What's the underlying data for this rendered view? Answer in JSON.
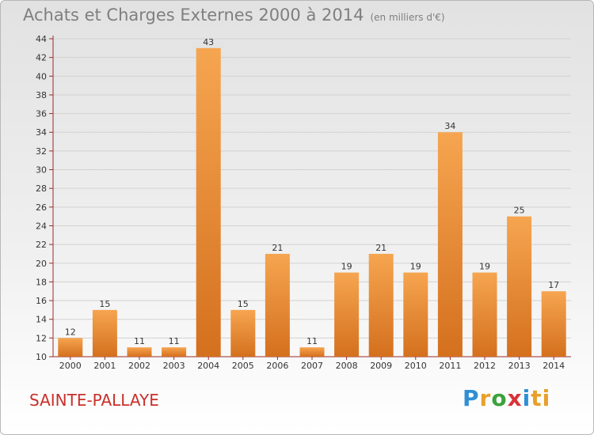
{
  "header": {
    "title": "Achats et Charges Externes 2000 à 2014",
    "unit": "(en milliers d'€)"
  },
  "footer": {
    "commune": "SAINTE-PALLAYE",
    "brand": "Proxiti",
    "brand_letters": [
      "P",
      "r",
      "o",
      "x",
      "i",
      "t",
      "i"
    ]
  },
  "colors": {
    "bar_light": "#f6a550",
    "bar_dark": "#d4701e",
    "axis": "#9a2a2a",
    "commune_text": "#c9302a"
  },
  "chart_data": {
    "type": "bar",
    "title": "Achats et Charges Externes 2000 à 2014",
    "subtitle": "(en milliers d'€)",
    "xlabel": "",
    "ylabel": "",
    "categories": [
      "2000",
      "2001",
      "2002",
      "2003",
      "2004",
      "2005",
      "2006",
      "2007",
      "2008",
      "2009",
      "2010",
      "2011",
      "2012",
      "2013",
      "2014"
    ],
    "values": [
      12,
      15,
      11,
      11,
      43,
      15,
      21,
      11,
      19,
      21,
      19,
      34,
      19,
      25,
      17
    ],
    "ylim": [
      10,
      44
    ],
    "yticks": [
      10,
      12,
      14,
      16,
      18,
      20,
      22,
      24,
      26,
      28,
      30,
      32,
      34,
      36,
      38,
      40,
      42,
      44
    ],
    "grid": true,
    "legend": "none"
  }
}
